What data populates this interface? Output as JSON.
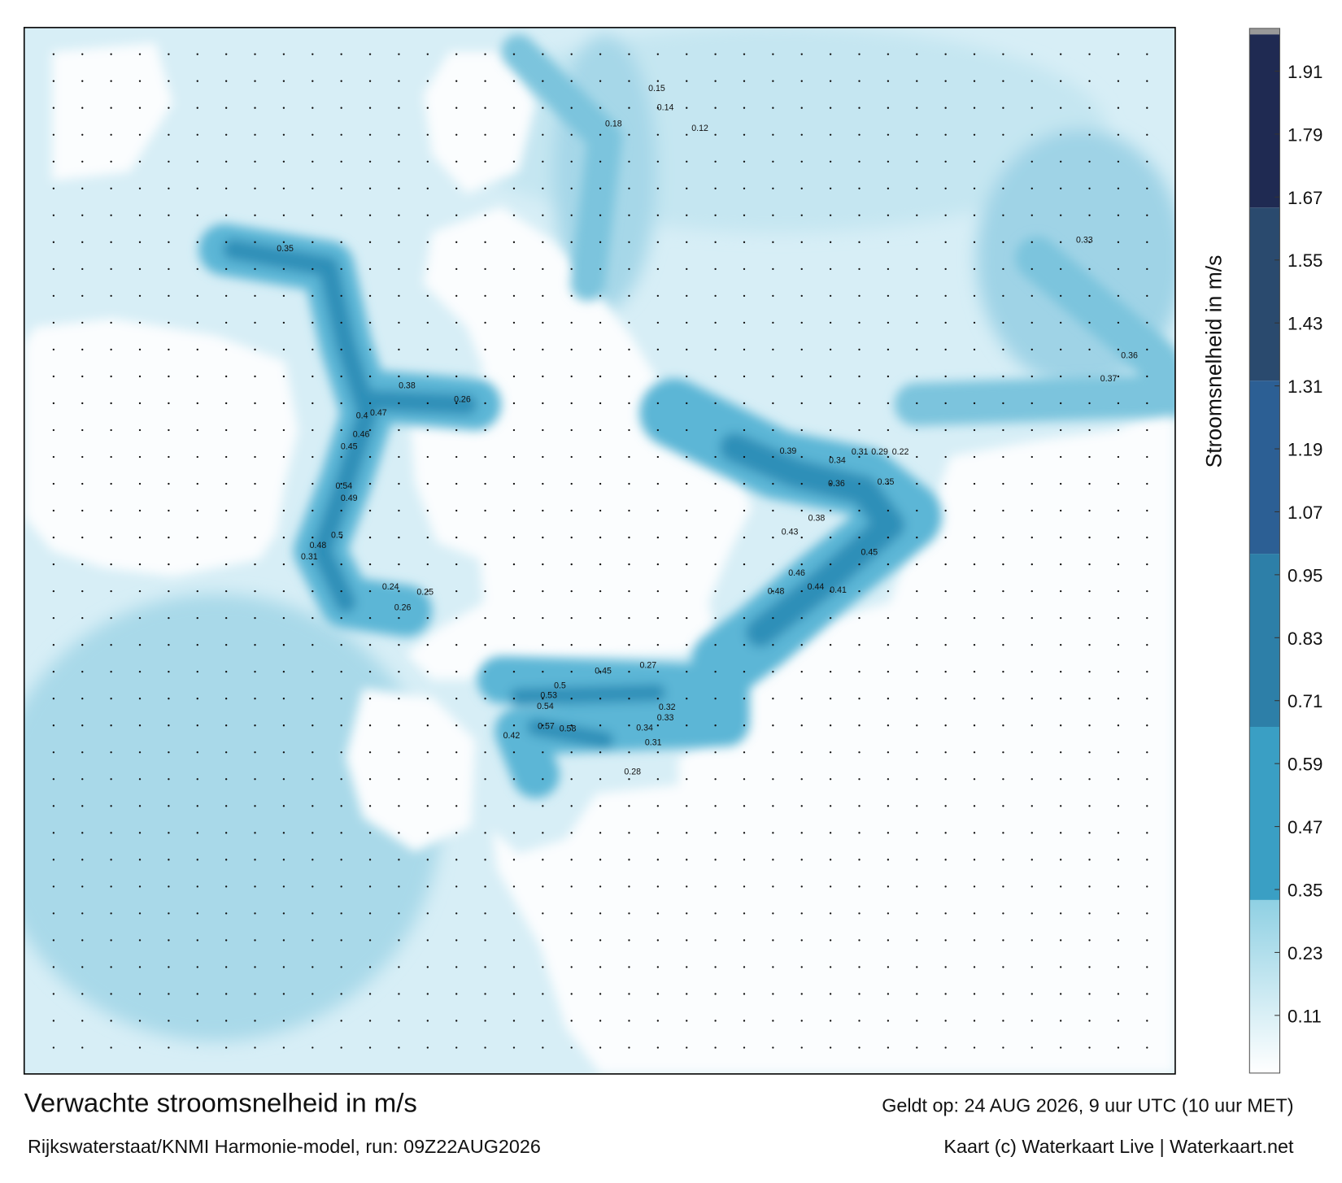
{
  "title": "Verwachte stroomsnelheid in m/s",
  "subtitle": "Rijkswaterstaat/KNMI Harmonie-model, run: 09Z22AUG2026",
  "valid_time": "Geldt op: 24 AUG 2026, 9 uur UTC (10 uur MET)",
  "credit": "Kaart (c) Waterkaart Live | Waterkaart.net",
  "colorbar": {
    "label": "Stroomsnelheid in m/s",
    "lim": [
      0,
      1.98
    ],
    "ticks": [
      0.11,
      0.23,
      0.35,
      0.47,
      0.59,
      0.71,
      0.83,
      0.95,
      1.07,
      1.19,
      1.31,
      1.43,
      1.55,
      1.67,
      1.79,
      1.91
    ],
    "levels": [
      0,
      0.33,
      0.66,
      0.99,
      1.32,
      1.65,
      1.98
    ],
    "colors": [
      "#8fd0e3",
      "#3a9fc4",
      "#2d7fa8",
      "#2c5f94",
      "#2a4a6e",
      "#1f2a52"
    ]
  },
  "map_labels": [
    0.35,
    0.46,
    0.45,
    0.49,
    0.54,
    0.48,
    0.5,
    0.38,
    0.26,
    0.47,
    0.4,
    0.31,
    0.26,
    0.24,
    0.25,
    0.39,
    0.38,
    0.43,
    0.45,
    0.46,
    0.48,
    0.44,
    0.41,
    0.36,
    0.35,
    0.34,
    0.31,
    0.29,
    0.22,
    0.58,
    0.57,
    0.54,
    0.53,
    0.5,
    0.45,
    0.42,
    0.34,
    0.33,
    0.32,
    0.27,
    0.28,
    0.31,
    0.33,
    0.37,
    0.36,
    0.15,
    0.14,
    0.18,
    0.12
  ]
}
